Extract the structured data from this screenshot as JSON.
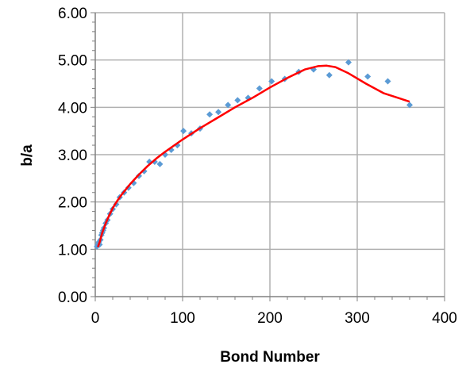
{
  "chart_data": {
    "type": "scatter",
    "title": "",
    "xlabel": "Bond Number",
    "ylabel": "b/a",
    "xlim": [
      0,
      400
    ],
    "ylim": [
      0,
      6
    ],
    "x_ticks": [
      "0",
      "100",
      "200",
      "300",
      "400"
    ],
    "y_ticks": [
      "0.00",
      "1.00",
      "2.00",
      "3.00",
      "4.00",
      "5.00",
      "6.00"
    ],
    "grid": true,
    "legend": "none",
    "series": [
      {
        "kind": "points",
        "color": "#5b9bd5",
        "x": [
          2,
          3,
          4,
          5,
          6,
          7,
          8,
          9,
          10,
          12,
          14,
          17,
          20,
          24,
          28,
          33,
          38,
          44,
          50,
          56,
          62,
          68,
          74,
          80,
          87,
          94,
          101,
          110,
          120,
          131,
          141,
          152,
          163,
          175,
          188,
          202,
          217,
          233,
          250,
          268,
          290,
          312,
          335,
          360
        ],
        "y": [
          1.06,
          1.1,
          1.15,
          1.1,
          1.2,
          1.3,
          1.35,
          1.4,
          1.45,
          1.55,
          1.62,
          1.75,
          1.85,
          1.95,
          2.1,
          2.2,
          2.3,
          2.4,
          2.55,
          2.65,
          2.85,
          2.85,
          2.8,
          3.0,
          3.1,
          3.2,
          3.5,
          3.45,
          3.55,
          3.85,
          3.9,
          4.05,
          4.15,
          4.2,
          4.4,
          4.55,
          4.6,
          4.75,
          4.8,
          4.68,
          4.95,
          4.65,
          4.55,
          4.05
        ]
      },
      {
        "kind": "fit-line",
        "color": "#ff0000",
        "x": [
          3,
          5,
          8,
          12,
          16,
          20,
          25,
          30,
          40,
          50,
          60,
          70,
          80,
          100,
          120,
          140,
          160,
          180,
          200,
          220,
          240,
          255,
          265,
          275,
          290,
          310,
          330,
          350,
          360
        ],
        "y": [
          1.05,
          1.15,
          1.35,
          1.55,
          1.72,
          1.87,
          2.02,
          2.15,
          2.38,
          2.58,
          2.76,
          2.92,
          3.06,
          3.32,
          3.56,
          3.78,
          4.0,
          4.2,
          4.42,
          4.62,
          4.8,
          4.87,
          4.88,
          4.85,
          4.72,
          4.5,
          4.3,
          4.18,
          4.12
        ]
      }
    ]
  }
}
